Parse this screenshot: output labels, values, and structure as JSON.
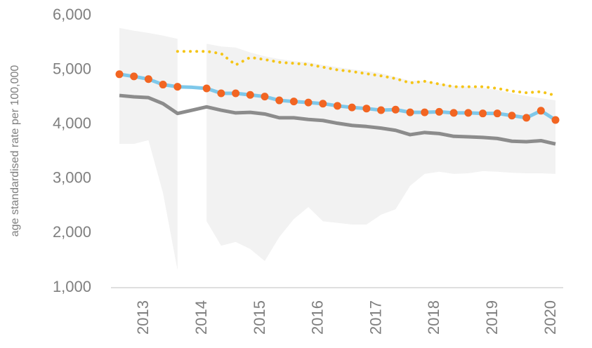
{
  "chart_data": {
    "type": "line",
    "y_label": "age standardised rate per 100,000",
    "categories": [
      null,
      null,
      "2013",
      null,
      null,
      null,
      "2014",
      null,
      null,
      null,
      "2015",
      null,
      null,
      null,
      "2016",
      null,
      null,
      null,
      "2017",
      null,
      null,
      null,
      "2018",
      null,
      null,
      null,
      "2019",
      null,
      null,
      null,
      "2020"
    ],
    "ylim": [
      1000,
      6000
    ],
    "yticks": [
      {
        "value": 1000,
        "label": "1,000"
      },
      {
        "value": 2000,
        "label": "2,000"
      },
      {
        "value": 3000,
        "label": "3,000"
      },
      {
        "value": 4000,
        "label": "4,000"
      },
      {
        "value": 5000,
        "label": "5,000"
      },
      {
        "value": 6000,
        "label": "6,000"
      }
    ],
    "band": {
      "color": "#f2f2f2",
      "upper": [
        5770,
        5720,
        5680,
        5630,
        5570,
        null,
        5480,
        5430,
        5410,
        5320,
        5250,
        5200,
        5160,
        5140,
        5090,
        5050,
        5010,
        4980,
        4940,
        4870,
        4800,
        4800,
        4750,
        4710,
        4690,
        4670,
        4630,
        4570,
        4520,
        4480,
        4440
      ],
      "lower": [
        3640,
        3640,
        3710,
        2740,
        1320,
        null,
        2220,
        1770,
        1840,
        1710,
        1490,
        1930,
        2260,
        2480,
        2220,
        2190,
        2160,
        2160,
        2340,
        2440,
        2870,
        3090,
        3130,
        3090,
        3100,
        3140,
        3130,
        3110,
        3100,
        3100,
        3090
      ]
    },
    "series": [
      {
        "color": "#8c8c8c",
        "style": "solid",
        "values": [
          4530,
          4505,
          4490,
          4380,
          4200,
          4260,
          4320,
          4260,
          4210,
          4220,
          4190,
          4120,
          4120,
          4090,
          4070,
          4020,
          3980,
          3960,
          3930,
          3890,
          3810,
          3850,
          3830,
          3780,
          3770,
          3760,
          3740,
          3690,
          3680,
          3700,
          3640
        ]
      },
      {
        "color": "#f5c518",
        "style": "dotted",
        "values": [
          null,
          null,
          null,
          null,
          5340,
          5340,
          5340,
          5300,
          5090,
          5230,
          5190,
          5140,
          5120,
          5100,
          5050,
          5000,
          4970,
          4930,
          4890,
          4840,
          4760,
          4790,
          4740,
          4690,
          4690,
          4690,
          4660,
          4610,
          4580,
          4600,
          4530
        ]
      },
      {
        "color": "#7ec8ea",
        "style": "solid",
        "values": [
          4920,
          4880,
          4830,
          4730,
          4690,
          4680,
          4660,
          4570,
          4570,
          4540,
          4510,
          4440,
          4420,
          4400,
          4380,
          4340,
          4310,
          4290,
          4260,
          4270,
          4220,
          4220,
          4230,
          4210,
          4210,
          4200,
          4200,
          4160,
          4120,
          4250,
          4080
        ]
      },
      {
        "color": "#f26522",
        "style": "points",
        "values": [
          4920,
          4880,
          4830,
          4730,
          4690,
          null,
          4660,
          4570,
          4570,
          4540,
          4510,
          4440,
          4420,
          4400,
          4380,
          4340,
          4310,
          4290,
          4260,
          4270,
          4220,
          4220,
          4230,
          4210,
          4210,
          4200,
          4200,
          4160,
          4120,
          4250,
          4080
        ]
      }
    ]
  }
}
